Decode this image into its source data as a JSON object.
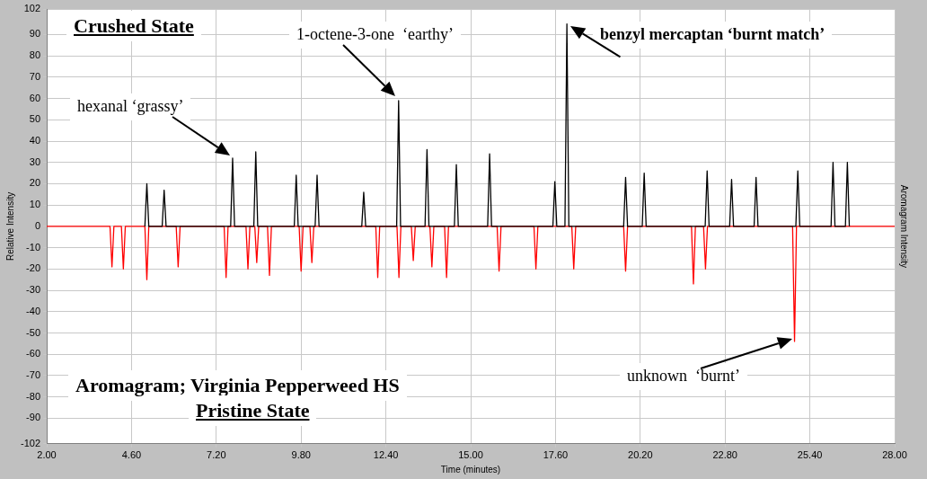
{
  "chart_data": {
    "type": "line",
    "title": "Aromagram; Virginia Pepperweed HS",
    "xlabel": "Time (minutes)",
    "ylabel": "Relative Intensity",
    "y2label": "Aromagram Intensity",
    "series": [
      {
        "color": "#000000",
        "x": [
          5.01,
          5.07,
          5.13,
          5.54,
          5.6,
          5.66,
          7.64,
          7.7,
          7.76,
          8.35,
          8.41,
          8.47,
          9.59,
          9.65,
          9.71,
          10.23,
          10.29,
          10.35,
          11.66,
          11.72,
          11.78,
          12.73,
          12.79,
          12.85,
          13.6,
          13.66,
          13.72,
          14.5,
          14.56,
          14.62,
          15.52,
          15.58,
          15.64,
          17.52,
          17.58,
          17.64,
          17.89,
          17.95,
          18.01,
          19.69,
          19.75,
          19.81,
          20.26,
          20.32,
          20.38,
          22.19,
          22.25,
          22.31,
          22.94,
          23.0,
          23.06,
          23.69,
          23.75,
          23.81,
          24.97,
          25.03,
          25.09,
          26.05,
          26.11,
          26.17,
          26.49,
          26.55,
          26.61
        ],
        "values": [
          0,
          20,
          0,
          0,
          17,
          0,
          0,
          32,
          0,
          0,
          35,
          0,
          0,
          24,
          0,
          0,
          24,
          0,
          0,
          16,
          0,
          0,
          59,
          0,
          0,
          36,
          0,
          0,
          29,
          0,
          0,
          34,
          0,
          0,
          21,
          0,
          0,
          95,
          0,
          0,
          23,
          0,
          0,
          25,
          0,
          0,
          26,
          0,
          0,
          22,
          0,
          0,
          23,
          0,
          0,
          26,
          0,
          0,
          30,
          0,
          0,
          30,
          0
        ]
      },
      {
        "color": "#ff0000",
        "x": [
          2,
          3.94,
          4.0,
          4.06,
          4.29,
          4.35,
          4.41,
          5.01,
          5.07,
          5.13,
          5.97,
          6.03,
          6.09,
          7.44,
          7.5,
          7.56,
          8.11,
          8.17,
          8.23,
          8.38,
          8.44,
          8.5,
          8.77,
          8.83,
          8.89,
          9.74,
          9.8,
          9.86,
          10.07,
          10.13,
          10.19,
          12.09,
          12.15,
          12.21,
          12.74,
          12.8,
          12.86,
          13.18,
          13.24,
          13.3,
          13.75,
          13.81,
          13.87,
          14.2,
          14.26,
          14.32,
          15.81,
          15.87,
          15.93,
          16.94,
          17.0,
          17.06,
          18.1,
          18.16,
          18.22,
          19.69,
          19.75,
          19.81,
          21.77,
          21.83,
          21.89,
          22.14,
          22.2,
          22.26,
          24.87,
          24.93,
          24.99,
          28
        ],
        "values": [
          0,
          0,
          -19,
          0,
          0,
          -20,
          0,
          0,
          -25,
          0,
          0,
          -19,
          0,
          0,
          -24,
          0,
          0,
          -20,
          0,
          0,
          -17,
          0,
          0,
          -23,
          0,
          0,
          -21,
          0,
          0,
          -17,
          0,
          0,
          -24,
          0,
          0,
          -24,
          0,
          0,
          -16,
          0,
          0,
          -19,
          0,
          0,
          -24,
          0,
          0,
          -21,
          0,
          0,
          -20,
          0,
          0,
          -20,
          0,
          0,
          -21,
          0,
          0,
          -27,
          0,
          0,
          -20,
          0,
          0,
          -54,
          0,
          0
        ]
      }
    ],
    "xlim": [
      2,
      28
    ],
    "xticks": [
      {
        "value": 2,
        "label": "2.00"
      },
      {
        "value": 4.6,
        "label": "4.60"
      },
      {
        "value": 7.2,
        "label": "7.20"
      },
      {
        "value": 9.8,
        "label": "9.80"
      },
      {
        "value": 12.4,
        "label": "12.40"
      },
      {
        "value": 15,
        "label": "15.00"
      },
      {
        "value": 17.6,
        "label": "17.60"
      },
      {
        "value": 20.2,
        "label": "20.20"
      },
      {
        "value": 22.8,
        "label": "22.80"
      },
      {
        "value": 25.4,
        "label": "25.40"
      },
      {
        "value": 28,
        "label": "28.00"
      }
    ],
    "ylim": [
      -102,
      102
    ],
    "yticks": [
      -102,
      -90,
      -80,
      -70,
      -60,
      -50,
      -40,
      -30,
      -20,
      -10,
      0,
      10,
      20,
      30,
      40,
      50,
      60,
      70,
      80,
      90,
      102
    ],
    "grid": true,
    "legend": false,
    "marker": "none",
    "line_style": "solid",
    "annotations": [
      "Crushed State",
      "hexanal ‘grassy’",
      "1-octene-3-one  ‘earthy’",
      {
        "text": "benzyl mercaptan ‘burnt match’",
        "x": 17.95,
        "y": 95
      },
      "unknown  ‘burnt’",
      "Pristine State"
    ]
  }
}
